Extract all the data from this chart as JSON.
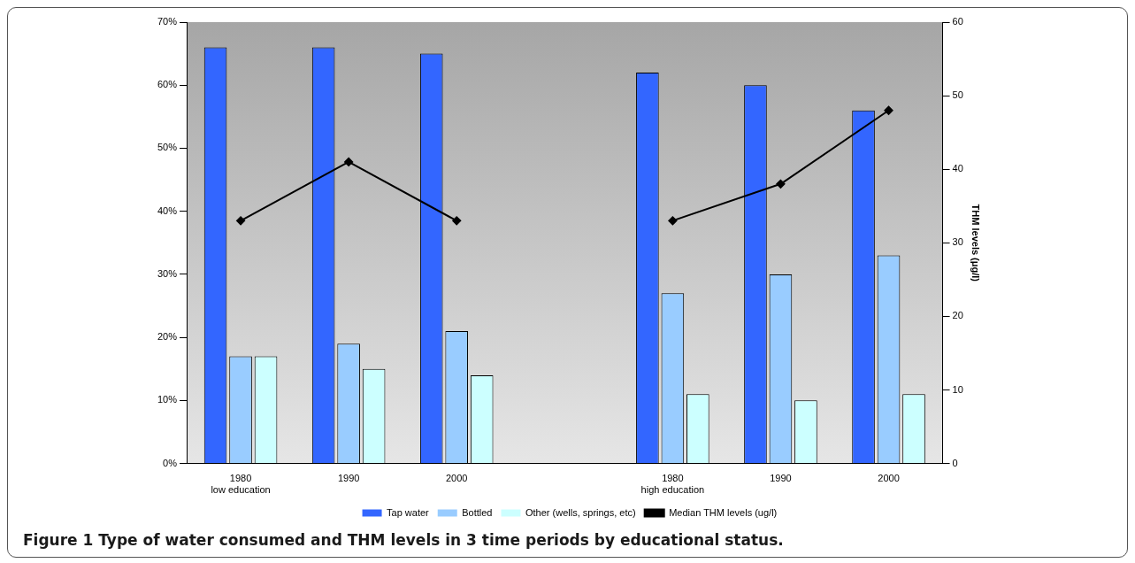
{
  "chart_data": {
    "type": "bar",
    "title": "Figure 1 Type of water consumed and THM levels in 3 time periods by educational status.",
    "y2label": "THM levels (μg/l)",
    "categories": [
      "1980\nlow education",
      "1990",
      "2000",
      null,
      "1980\nhigh education",
      "1990",
      "2000"
    ],
    "series": [
      {
        "name": "Tap water",
        "color": "#3366ff",
        "values": [
          66,
          66,
          65,
          null,
          62,
          60,
          56
        ]
      },
      {
        "name": "Bottled",
        "color": "#99ccff",
        "values": [
          17,
          19,
          21,
          null,
          27,
          30,
          33
        ]
      },
      {
        "name": "Other (wells, springs, etc)",
        "color": "#ccffff",
        "values": [
          17,
          15,
          14,
          null,
          11,
          10,
          11
        ]
      },
      {
        "name": "Median THM levels (ug/l)",
        "type": "line",
        "axis": "y2",
        "color": "#000000",
        "marker": "diamond",
        "values": [
          33,
          41,
          33,
          null,
          33,
          38,
          48
        ]
      }
    ],
    "ylim": [
      0,
      70
    ],
    "yticks": [
      {
        "value": 0,
        "label": "0%"
      },
      {
        "value": 10,
        "label": "10%"
      },
      {
        "value": 20,
        "label": "20%"
      },
      {
        "value": 30,
        "label": "30%"
      },
      {
        "value": 40,
        "label": "40%"
      },
      {
        "value": 50,
        "label": "50%"
      },
      {
        "value": 60,
        "label": "60%"
      },
      {
        "value": 70,
        "label": "70%"
      }
    ],
    "y2lim": [
      0,
      60
    ],
    "y2ticks": [
      0,
      10,
      20,
      30,
      40,
      50,
      60
    ],
    "grid": false,
    "legend": "bottom"
  }
}
